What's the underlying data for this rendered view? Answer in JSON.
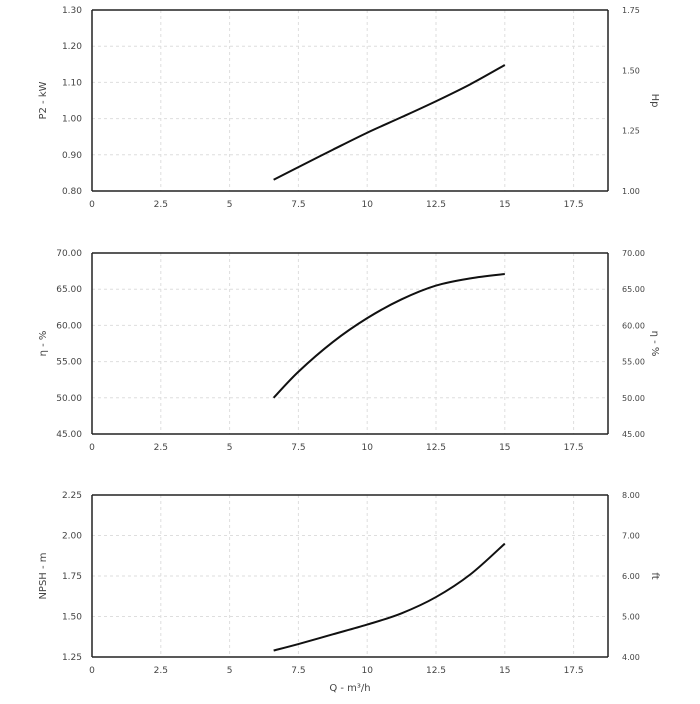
{
  "chart_data": [
    {
      "type": "line",
      "xlabel": "",
      "ylabel_left": "P2 - kW",
      "ylabel_right": "Hp",
      "xlim": [
        0,
        18.75
      ],
      "xticks": [
        0,
        2.5,
        5,
        7.5,
        10,
        12.5,
        15,
        17.5
      ],
      "x_tick_labels": [
        "0",
        "2.5",
        "5",
        "7.5",
        "10",
        "12.5",
        "15",
        "17.5"
      ],
      "ylim_left": [
        0.8,
        1.3
      ],
      "yticks_left": [
        "0.80",
        "0.90",
        "1.00",
        "1.10",
        "1.20",
        "1.30"
      ],
      "ylim_right": [
        1.0,
        1.75
      ],
      "yticks_right": [
        "1.00",
        "1.25",
        "1.50",
        "1.75"
      ],
      "grid": true,
      "series": [
        {
          "x": [
            6.6,
            7.5,
            8.75,
            10,
            11.25,
            12.5,
            13.75,
            15
          ],
          "y": [
            0.831,
            0.866,
            0.914,
            0.961,
            1.004,
            1.048,
            1.095,
            1.148
          ]
        }
      ]
    },
    {
      "type": "line",
      "xlabel": "",
      "ylabel_left": "η - %",
      "ylabel_right": "η - %",
      "xlim": [
        0,
        18.75
      ],
      "xticks": [
        0,
        2.5,
        5,
        7.5,
        10,
        12.5,
        15,
        17.5
      ],
      "x_tick_labels": [
        "0",
        "2.5",
        "5",
        "7.5",
        "10",
        "12.5",
        "15",
        "17.5"
      ],
      "ylim_left": [
        45,
        70
      ],
      "yticks_left": [
        "45.00",
        "50.00",
        "55.00",
        "60.00",
        "65.00",
        "70.00"
      ],
      "ylim_right": [
        45,
        70
      ],
      "yticks_right": [
        "45.00",
        "50.00",
        "55.00",
        "60.00",
        "65.00",
        "70.00"
      ],
      "grid": true,
      "series": [
        {
          "x": [
            6.6,
            7.5,
            8.75,
            10,
            11.25,
            12.5,
            13.75,
            15
          ],
          "y": [
            50.0,
            53.6,
            57.7,
            61.0,
            63.6,
            65.5,
            66.5,
            67.1
          ]
        }
      ]
    },
    {
      "type": "line",
      "xlabel": "Q - m³/h",
      "ylabel_left": "NPSH - m",
      "ylabel_right": "ft",
      "xlim": [
        0,
        18.75
      ],
      "xticks": [
        0,
        2.5,
        5,
        7.5,
        10,
        12.5,
        15,
        17.5
      ],
      "x_tick_labels": [
        "0",
        "2.5",
        "5",
        "7.5",
        "10",
        "12.5",
        "15",
        "17.5"
      ],
      "ylim_left": [
        1.25,
        2.25
      ],
      "yticks_left": [
        "1.25",
        "1.50",
        "1.75",
        "2.00",
        "2.25"
      ],
      "ylim_right": [
        4.0,
        8.0
      ],
      "yticks_right": [
        "4.00",
        "5.00",
        "6.00",
        "7.00",
        "8.00"
      ],
      "grid": true,
      "series": [
        {
          "x": [
            6.6,
            7.5,
            8.75,
            10,
            11.25,
            12.5,
            13.75,
            15
          ],
          "y": [
            1.29,
            1.33,
            1.39,
            1.45,
            1.52,
            1.62,
            1.76,
            1.95
          ]
        }
      ]
    }
  ]
}
